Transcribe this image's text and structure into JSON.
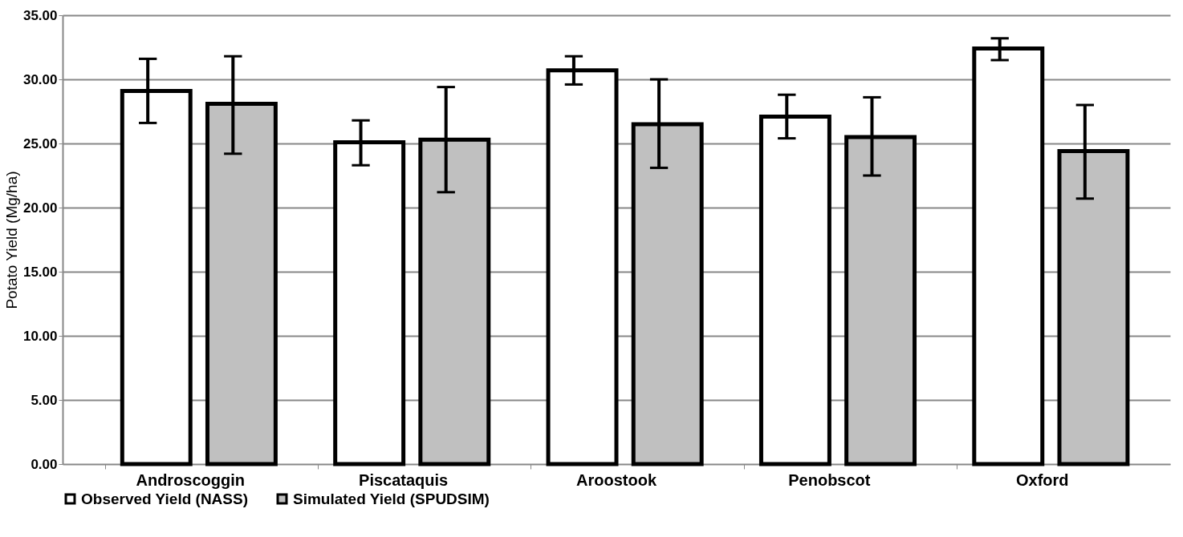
{
  "chart_data": {
    "type": "bar",
    "ylabel": "Potato Yield (Mg/ha)",
    "categories": [
      "Androscoggin",
      "Piscataquis",
      "Aroostook",
      "Penobscot",
      "Oxford"
    ],
    "series": [
      {
        "name": "Observed Yield (NASS)",
        "color": "#ffffff",
        "values": [
          29.1,
          25.1,
          30.7,
          27.1,
          32.4
        ],
        "errors": [
          [
            26.6,
            31.6
          ],
          [
            23.3,
            26.8
          ],
          [
            29.6,
            31.8
          ],
          [
            25.4,
            28.8
          ],
          [
            31.5,
            33.2
          ]
        ]
      },
      {
        "name": "Simulated Yield (SPUDSIM)",
        "color": "#c0c0c0",
        "values": [
          28.1,
          25.3,
          26.5,
          25.5,
          24.4
        ],
        "errors": [
          [
            24.2,
            31.8
          ],
          [
            21.2,
            29.4
          ],
          [
            23.1,
            30.0
          ],
          [
            22.5,
            28.6
          ],
          [
            20.7,
            28.0
          ]
        ]
      }
    ],
    "ylim": [
      0,
      35
    ],
    "yticks": [
      {
        "value": 0,
        "label": "0.00"
      },
      {
        "value": 5,
        "label": "5.00"
      },
      {
        "value": 10,
        "label": "10.00"
      },
      {
        "value": 15,
        "label": "15.00"
      },
      {
        "value": 20,
        "label": "20.00"
      },
      {
        "value": 25,
        "label": "25.00"
      },
      {
        "value": 30,
        "label": "30.00"
      },
      {
        "value": 35,
        "label": "35.00"
      }
    ],
    "grid": "y",
    "legend": "bottom"
  }
}
